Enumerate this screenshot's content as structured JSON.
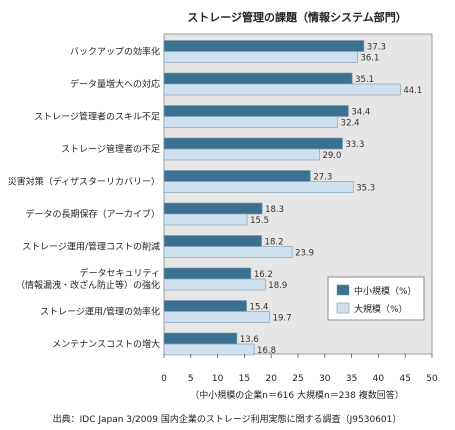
{
  "chart_data": {
    "type": "bar",
    "orientation": "horizontal",
    "title": "ストレージ管理の課題（情報システム部門）",
    "categories": [
      "バックアップの効率化",
      "データ量増大への対応",
      "ストレージ管理者のスキル不足",
      "ストレージ管理者の不足",
      "災害対策（ディザスターリカバリー）",
      "データの長期保存（アーカイブ）",
      "ストレージ運用/管理コストの削減",
      "データセキュリティ\n（情報漏洩・改ざん防止等）の強化",
      "ストレージ運用/管理の効率化",
      "メンテナンスコストの増大"
    ],
    "series": [
      {
        "name": "中小規模（%）",
        "color": "#3a7090",
        "values": [
          37.3,
          35.1,
          34.4,
          33.3,
          27.3,
          18.3,
          18.2,
          16.2,
          15.4,
          13.6
        ]
      },
      {
        "name": "大規模（%）",
        "color": "#cfe0ef",
        "values": [
          36.1,
          44.1,
          32.4,
          29.0,
          35.3,
          15.5,
          23.9,
          18.9,
          19.7,
          16.8
        ]
      }
    ],
    "value_labels": [
      [
        "37.3",
        "36.1"
      ],
      [
        "35.1",
        "44.1"
      ],
      [
        "34.4",
        "32.4"
      ],
      [
        "33.3",
        "29.0"
      ],
      [
        "27.3",
        "35.3"
      ],
      [
        "18.3",
        "15.5"
      ],
      [
        "18.2",
        "23.9"
      ],
      [
        "16.2",
        "18.9"
      ],
      [
        "15.4",
        "19.7"
      ],
      [
        "13.6",
        "16.8"
      ]
    ],
    "xlim": [
      0,
      50
    ],
    "xticks": [
      0,
      5,
      10,
      15,
      20,
      25,
      30,
      35,
      40,
      45,
      50
    ],
    "legend_position": "lower-right",
    "note": "（中小規模の企業n＝616 大規模n＝238 複数回答）",
    "source": "出典：IDC Japan 3/2009 国内企業のストレージ利用実態に関する調査（J9530601）",
    "colors": {
      "plot_background": "#e6e6e6",
      "plot_border": "#888888",
      "bar_border": "#7f9aae"
    }
  }
}
